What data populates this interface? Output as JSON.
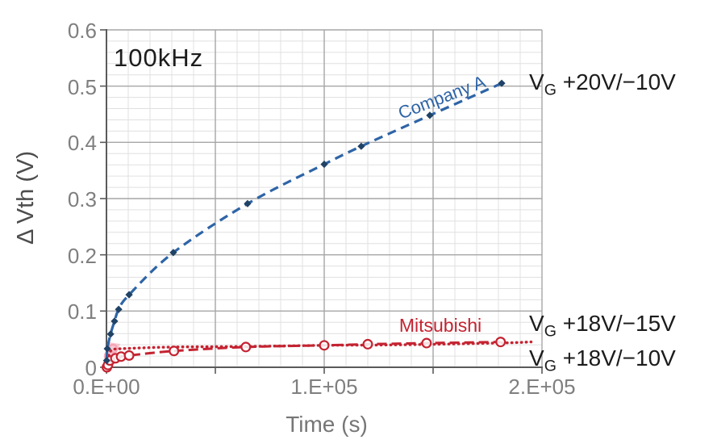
{
  "labels": {
    "frequency": "100kHz",
    "company_a": "Company A",
    "mitsubishi": "Mitsubishi"
  },
  "annotations": [
    {
      "pre": "V",
      "sub": "G",
      "text": " +20V/−10V"
    },
    {
      "pre": "V",
      "sub": "G",
      "text": " +18V/−15V"
    },
    {
      "pre": "V",
      "sub": "G",
      "text": " +18V/−10V"
    }
  ],
  "chart_data": {
    "type": "line",
    "title": "",
    "xlabel": "Time (s)",
    "ylabel": "Δ Vth (V)",
    "xlim": [
      0,
      200000
    ],
    "ylim": [
      0,
      0.6
    ],
    "x_minor_step": 10000,
    "x_major_step": 50000,
    "y_minor_step": 0.02,
    "y_major_step": 0.1,
    "grid": true,
    "legend_position": "inline-annotations",
    "xticks": {
      "values": [
        0,
        100000,
        200000
      ],
      "labels": [
        "0.E+00",
        "1.E+05",
        "2.E+05"
      ]
    },
    "yticks": {
      "values": [
        0,
        0.1,
        0.2,
        0.3,
        0.4,
        0.5,
        0.6
      ],
      "labels": [
        "0",
        "0.1",
        "0.2",
        "0.3",
        "0.4",
        "0.5",
        "0.6"
      ]
    },
    "series": [
      {
        "name": "Company A",
        "condition": "VG +20V/−10V",
        "color": "#2e64a6",
        "marker_color": "#1f4265",
        "style": "dashed",
        "marker": "diamond",
        "x": [
          100,
          400,
          1900,
          3700,
          5600,
          10400,
          30700,
          64800,
          100000,
          117000,
          148500,
          181500
        ],
        "y": [
          0.012,
          0.033,
          0.059,
          0.082,
          0.103,
          0.129,
          0.204,
          0.291,
          0.361,
          0.393,
          0.448,
          0.505
        ]
      },
      {
        "name": "Mitsubishi",
        "condition": "VG +18V/−15V",
        "color": "#c42331",
        "marker_color": "#c42331",
        "style": "dotted",
        "marker": "none",
        "x": [
          0,
          1500,
          3000,
          6700,
          30700,
          64000,
          100000,
          136000,
          179000,
          195000
        ],
        "y": [
          0.004,
          0.026,
          0.031,
          0.033,
          0.036,
          0.037,
          0.039,
          0.04,
          0.043,
          0.045
        ]
      },
      {
        "name": "Mitsubishi",
        "condition": "VG +18V/−10V",
        "color": "#c42331",
        "marker_color": "#c42331",
        "style": "dashdot",
        "marker": "circle",
        "x": [
          200,
          700,
          1600,
          4100,
          6700,
          10400,
          31000,
          64000,
          100000,
          120000,
          147000,
          181000
        ],
        "y": [
          0.0,
          0.004,
          0.012,
          0.016,
          0.019,
          0.021,
          0.029,
          0.036,
          0.039,
          0.041,
          0.043,
          0.045
        ]
      }
    ],
    "start_cluster": {
      "color": "#f3a3b4",
      "description": "overlapping light-pink markers near t=0 on Mitsubishi curves"
    }
  }
}
